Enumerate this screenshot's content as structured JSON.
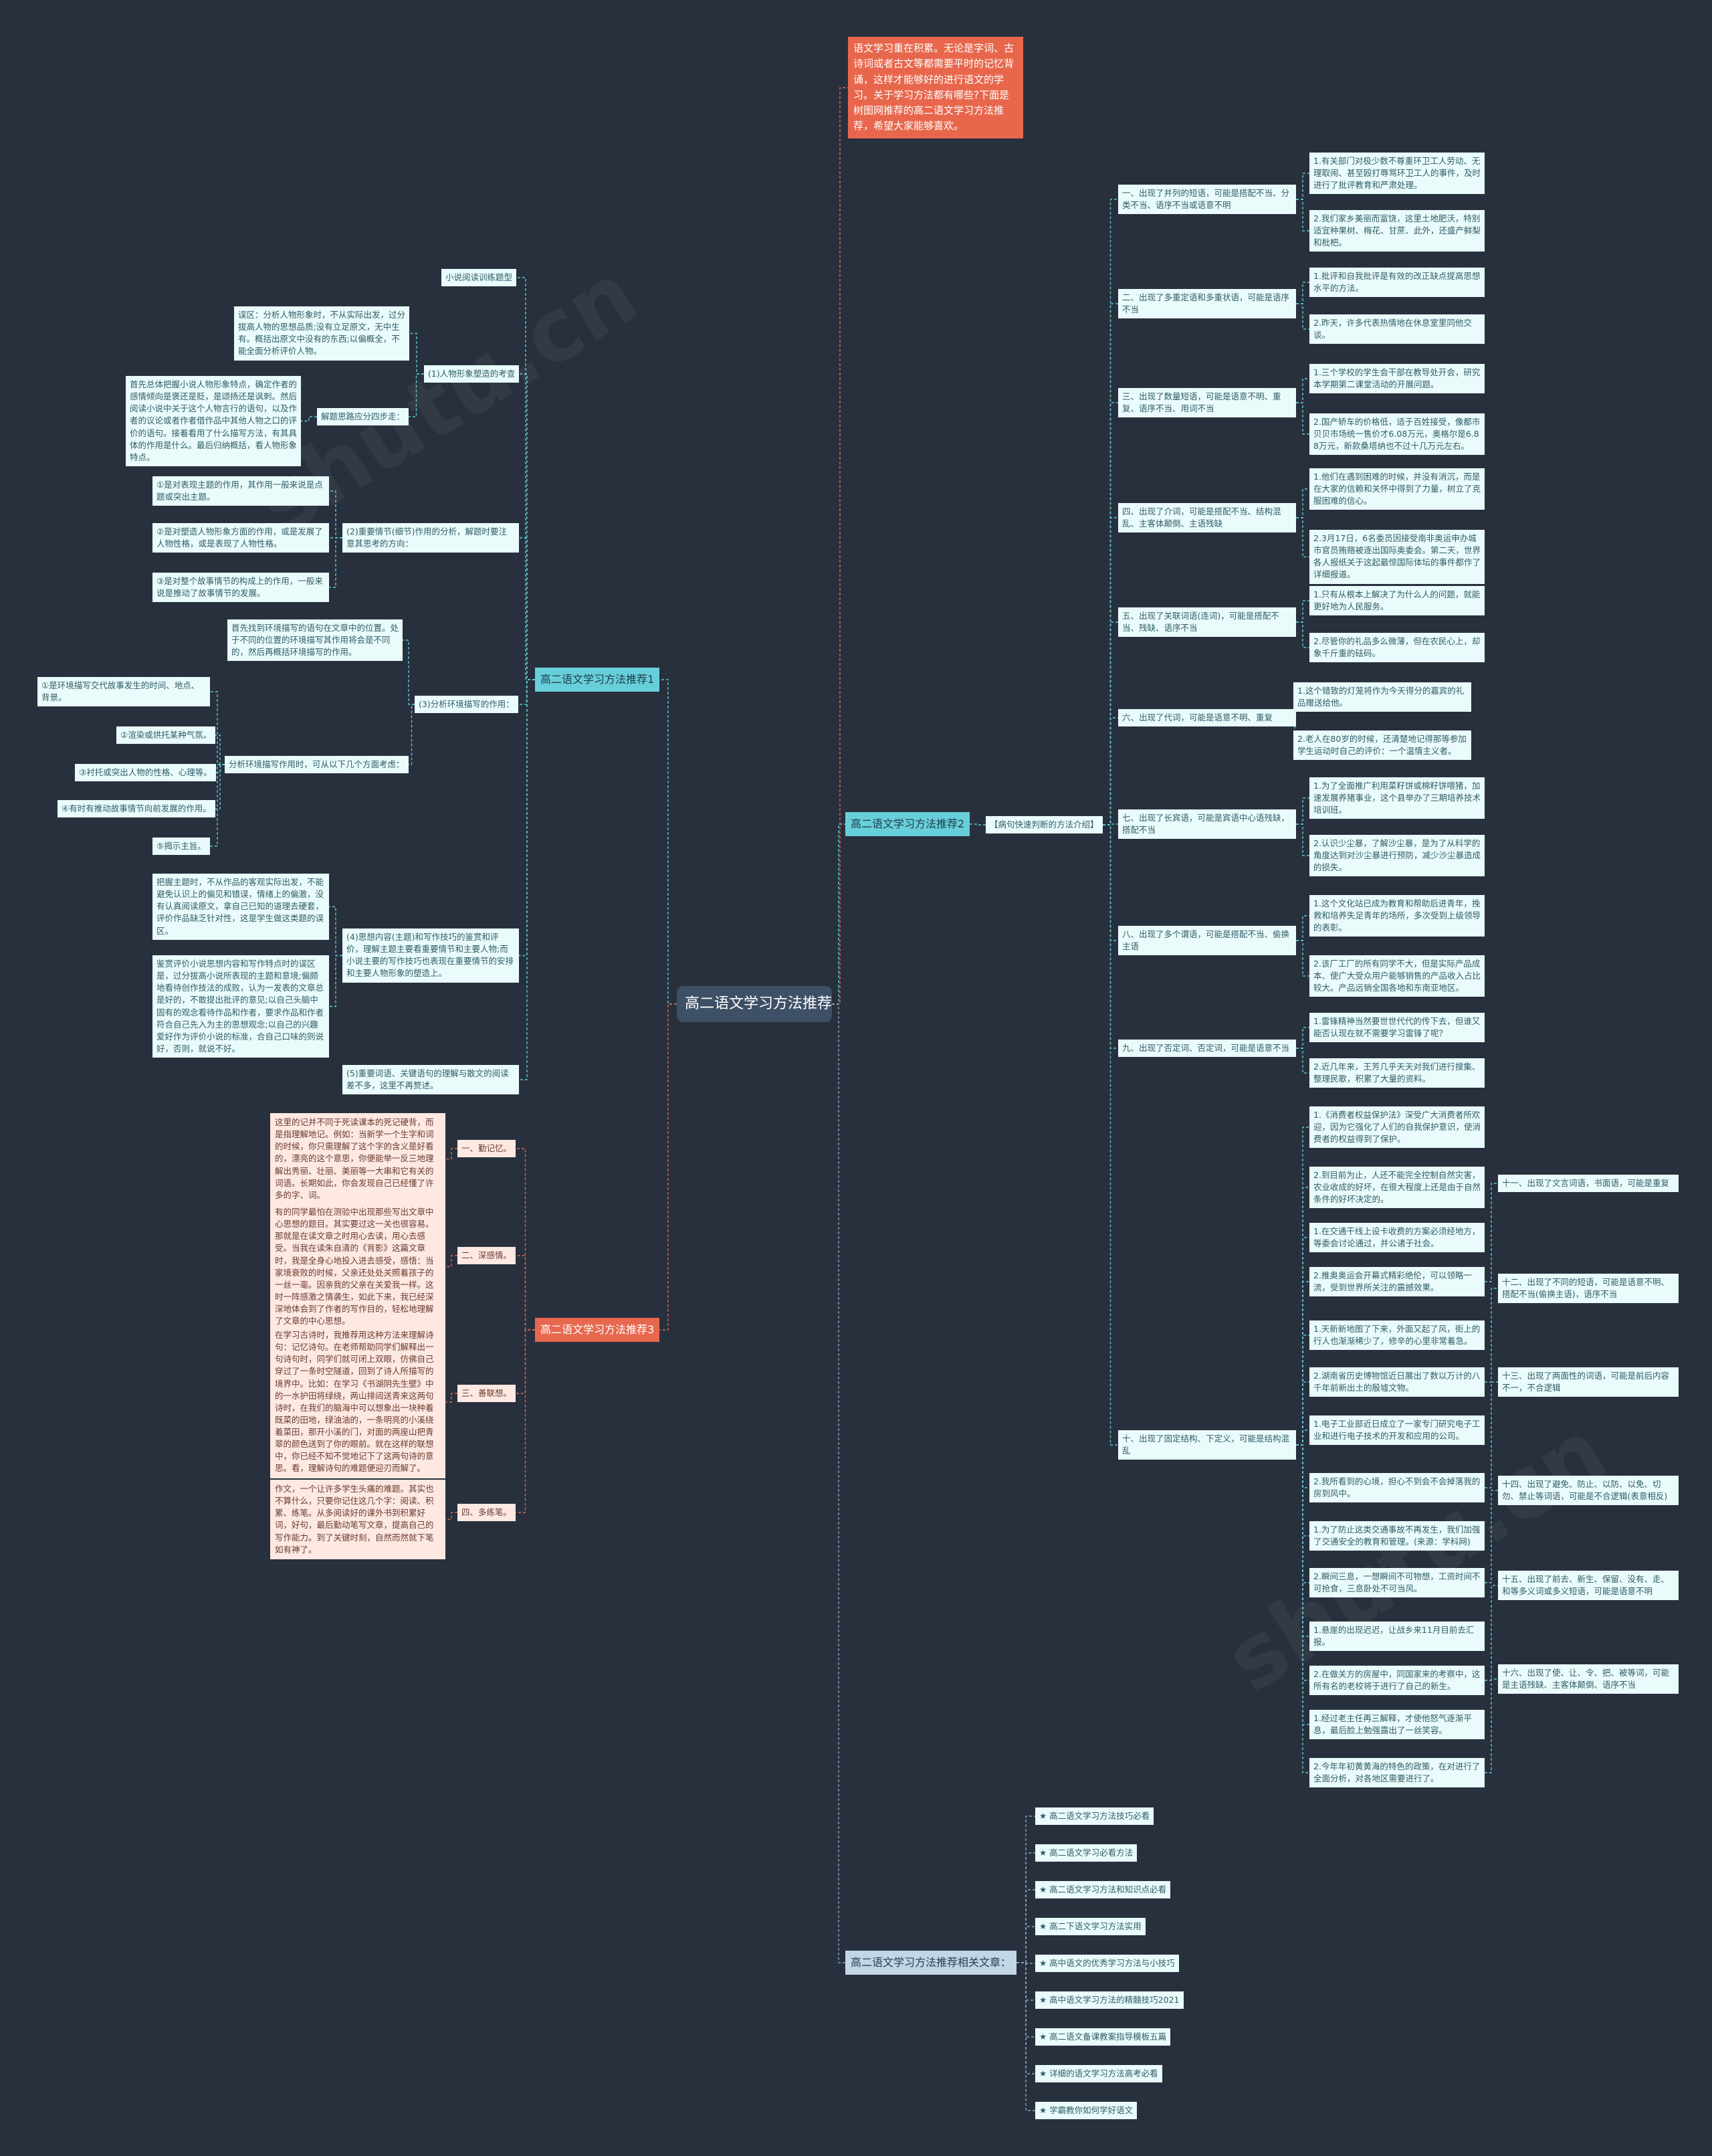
{
  "root": "高二语文学习方法推荐",
  "intro": "语文学习重在积累。无论是字词、古诗词或者古文等都需要平时的记忆背诵，这样才能够好的进行语文的学习。关于学习方法都有哪些?下面是树图网推荐的高二语文学习方法推荐，希望大家能够喜欢。",
  "branch1": {
    "label": "高二语文学习方法推荐1",
    "topic": "小说阅读训练题型",
    "s1": {
      "label": "(1)人物形象塑造的考查",
      "warn": "误区：分析人物形象时，不从实际出发，过分拔高人物的思想品质;没有立足原文，无中生有。概括出原文中没有的东西;以偏概全，不能全面分析评价人物。",
      "steps_label": "解题思路应分四步走：",
      "steps": "首先总体把握小说人物形象特点，确定作者的感情倾向是褒还是贬，是颂扬还是讽刺。然后阅读小说中关于这个人物言行的语句，以及作者的议论或者作者借作品中其他人物之口的评价的语句。接着看用了什么描写方法，有其具体的作用是什么。最后归纳概括，看人物形象特点。"
    },
    "s2": {
      "label": "(2)重要情节(细节)作用的分析，解题时要注意其思考的方向：",
      "items": [
        "①是对表现主题的作用，其作用一般来说是点题或突出主题。",
        "②是对塑造人物形象方面的作用，或是发展了人物性格，或是表现了人物性格。",
        "③是对整个故事情节的构成上的作用，一般来说是推动了故事情节的发展。"
      ]
    },
    "s3": {
      "label": "(3)分析环境描写的作用：",
      "first": "首先找到环境描写的语句在文章中的位置。处于不同的位置的环境描写其作用将会是不同的，然后再概括环境描写的作用。",
      "sub_label": "分析环境描写作用时，可从以下几个方面考虑：",
      "items": [
        "①是环境描写交代故事发生的时间、地点、背景。",
        "②渲染或烘托某种气氛。",
        "③衬托或突出人物的性格、心理等。",
        "④有时有推动故事情节向前发展的作用。",
        "⑤揭示主旨。"
      ]
    },
    "s4": {
      "label": "(4)思想内容(主题)和写作技巧的鉴赏和评价，理解主题主要看重要情节和主要人物;而小说主要的写作技巧也表现在重要情节的安排和主要人物形象的塑造上。",
      "items": [
        "把握主题时，不从作品的客观实际出发，不能避免认识上的偏见和错误，情绪上的偏激，没有认真阅读原文，拿自己已知的道理去硬套，评价作品缺乏针对性，这是学生做这类题的误区。",
        "鉴赏评价小说思想内容和写作特点时的误区是，过分拔高小说所表现的主题和意境;偏颇地看待创作技法的成败，认为一发表的文章总是好的，不敢提出批评的意见;以自己头脑中固有的观念看待作品和作者，要求作品和作者符合自己先入为主的思想观念;以自己的兴趣爱好作为评价小说的标准，合自己口味的则说好，否则，就说不好。"
      ]
    },
    "s5": "(5)重要词语、关键语句的理解与散文的阅读差不多，这里不再赘述。"
  },
  "branch3": {
    "label": "高二语文学习方法推荐3",
    "items": [
      {
        "label": "一、勤记忆。",
        "text": "这里的记并不同于死读课本的死记硬背，而是指理解地记。例如：当新学一个生字和词的时候，你只需理解了这个字的含义是好看的，漂亮的这个意思，你便能举一反三地理解出秀丽、壮丽、美丽等一大串和它有关的词语。长期如此，你会发现自己已经懂了许多的字、词。"
      },
      {
        "label": "二、深感情。",
        "text": "有的同学最怕在测验中出现那些写出文章中心思想的题目。其实要过这一关也很容易。那就是在读文章之时用心去读，用心去感受。当我在读朱自清的《背影》这篇文章时，我是全身心地投入进去感受，感悟：当家境衰败的时候，父亲还处处关照着孩子的一丝一毫。因亲我的父亲在关爱我一样。这时一阵感激之情袭生，如此下来，我已经深深地体会到了作者的写作目的，轻松地理解了文章的中心思想。"
      },
      {
        "label": "三、善联想。",
        "text": "在学习古诗时，我推荐用这种方法来理解诗句：记忆诗句。在老师帮助同学们解释出一句诗句时，同学们就可闭上双眼，仿佛自己穿过了一条时空隧道，回到了诗人所描写的境界中。比如：在学习《书湖阴先生壁》中的一水护田将绿绕，两山排闼送青来这两句诗时，在我们的脑海中可以想象出一块种着既菜的田地，绿油油的，一条明亮的小溪绕着菜田，那开小溪的门，对面的两座山把青翠的颜色送到了你的眼前。就在这样的联想中，你已经不知不觉地记下了这两句诗的意思。看，理解诗句的难题便迎刃而解了。"
      },
      {
        "label": "四、多练笔。",
        "text": "作文，一个让许多学生头痛的难题。其实也不算什么，只要你记住这几个字：阅读、积累、练笔。从多阅读好的课外书到积累好词，好句，最后勤动笔写文章，提高自己的写作能力。到了关键时刻，自然而然就下笔如有神了。"
      }
    ]
  },
  "branch2": {
    "label": "高二语文学习方法推荐2",
    "method": "【病句快速判断的方法介绍】",
    "items": [
      {
        "label": "一、出现了并列的短语，可能是搭配不当、分类不当、语序不当或语意不明",
        "subs": [
          "1.有关部门对极少数不尊重环卫工人劳动、无理取闹、甚至殴打辱骂环卫工人的事件，及时进行了批评教育和严肃处理。",
          "2.我们家乡美丽而富饶，这里土地肥沃，特别适宜种果树、梅花、甘蔗、此外，还盛产鲜梨和枇杷。"
        ]
      },
      {
        "label": "二、出现了多重定语和多重状语，可能是语序不当",
        "subs": [
          "1.批评和自我批评是有效的改正缺点提高思想水平的方法。",
          "2.昨天，许多代表热情地在休息室里同他交谈。"
        ]
      },
      {
        "label": "三、出现了数量短语，可能是语意不明、重复、语序不当、用词不当",
        "subs": [
          "1.三个学校的学生会干部在教导处开会，研究本学期第二课堂活动的开展问题。",
          "2.国产轿车的价格低，适于百姓接受，像都市贝贝市场统一售价才6.08万元，奥格尔是6.88万元，新款桑塔纳也不过十几万元左右。"
        ]
      },
      {
        "label": "四、出现了介词，可能是搭配不当、结构混乱、主客体颠倒、主语残缺",
        "subs": [
          "1.他们在遇到困难的时候，并没有消沉，而是在大家的信赖和关怀中得到了力量，树立了克服困难的信心。",
          "2.3月17日，6名委员因接受南非奥运申办城市官员贿赂被逐出国际奥委会。第二天，世界各人报纸关于这起最惊国际体坛的事件都作了详细报道。"
        ]
      },
      {
        "label": "五、出现了关联词语(连词)，可能是搭配不当、残缺、语序不当",
        "subs": [
          "1.只有从根本上解决了为什么人的问题，就能更好地为人民服务。",
          "2.尽管你的礼品多么微薄，但在农民心上，却象千斤重的砝码。"
        ]
      },
      {
        "label": "六、出现了代词，可能是语意不明、重复",
        "subs": [
          "1.这个错致的灯笼将作为今天得分的嘉宾的礼品赠送给他。",
          "2.老人在80岁的时候，还清楚地记得那等参加学生运动时自己的评价：一个温情主义者。"
        ]
      },
      {
        "label": "七、出现了长宾语，可能是宾语中心语残缺，搭配不当",
        "subs": [
          "1.为了全面推广利用菜籽饼或棉籽饼喂猪，加速发展养猪事业，这个县举办了三期培养技术培训班。",
          "2.认识少尘暴，了解沙尘暴，是为了从科学的角度达到对沙尘暴进行预防，减少沙尘暴造成的损失。"
        ]
      },
      {
        "label": "八、出现了多个谓语，可能是搭配不当、偷换主语",
        "subs": [
          "1.这个文化站已成为教育和帮助后进青年，挽救和培养失足青年的场所，多次受到上级领导的表彰。",
          "2.该厂工厂的所有同学不大，但是实际产品成本、使广大受众用户能够销售的产品收入占比较大。产品远销全国各地和东南亚地区。"
        ]
      },
      {
        "label": "九、出现了否定词、否定词，可能是语意不当",
        "subs": [
          "1.雷锋精神当然要世世代代的传下去，但谁又能否认现在就不需要学习雷锋了呢？",
          "2.近几年来，王芳几乎天天对我们进行搜集、整理民歌，积累了大量的资料。"
        ]
      },
      {
        "label": "十、出现了固定结构、下定义，可能是结构混乱",
        "subs": [
          "1.《消费者权益保护法》深受广大消费者所欢迎，因为它强化了人们的自我保护意识，使消费者的权益得到了保护。",
          "2.到目前为止，人还不能完全控制自然灾害，农业收成的好坏，在很大程度上还是由于自然条件的好坏决定的。",
          "1.在交通干线上设卡收费的方案必须经地方，等委会讨论通过，并公诸于社会。",
          "2.推奥奥运会开幕式精彩绝伦，可以领略一流，受到世界所关注的震撼效果。",
          "1.天新新地图了下来，外面又起了风，街上的行人也渐渐稀少了，修辛的心里非常着急。",
          "2.湖南省历史博物馆近日展出了数以万计的八千年前新出土的殷墟文物。",
          "1.电子工业部近日成立了一家专门研究电子工业和进行电子技术的开发和应用的公司。",
          "2.我所看到的心境，担心不到会不会掉落我的房到风中。",
          "1.为了防止这类交通事故不再发生，我们加强了交通安全的教育和管理。(来源：学科网)",
          "2.瞬间三息，一想瞬间不可物想，工资时间不可抢食，三息卧处不可当风。",
          "1.悬崖的出现迟迟，让战乡来11月目前去汇报。",
          "2.在做关方的房屋中，同国家来的考察中，这所有名的老校将于进行了自己的新生。",
          "1.经过老主任再三解释，才使他怒气逐渐平息，最后脸上勉强露出了一丝笑容。",
          "2.今年年初黄黄海的特色的政策，在对进行了全面分析，对各地区需要进行了。"
        ]
      }
    ],
    "extras": [
      {
        "label": "十一、出现了文言词语，书面语，可能是重复",
        "attach": 17
      },
      {
        "label": "十二、出现了不同的短语，可能是语意不明、搭配不当(偷换主语)，语序不当",
        "attach": 19
      },
      {
        "label": "十三、出现了两面性的词语，可能是前后内容不一，不合逻辑",
        "attach": 21
      },
      {
        "label": "十四、出现了避免、防止、以防、以免、切勿、禁止等词语，可能是不合逻辑(表意相反)",
        "attach": 23
      },
      {
        "label": "十五、出现了前去、新生、保留、没有、走、和等多义词或多义短语，可能是语意不明",
        "attach": 25
      },
      {
        "label": "十六、出现了使、让、令、把、被等词，可能是主语残缺、主客体颠倒、语序不当",
        "attach": 27
      }
    ]
  },
  "branch4": {
    "label": "高二语文学习方法推荐相关文章：",
    "links": [
      "★ 高二语文学习方法技巧必看",
      "★ 高二语文学习必看方法",
      "★ 高二语文学习方法和知识点必看",
      "★ 高二下语文学习方法实用",
      "★ 高中语文的优秀学习方法与小技巧",
      "★ 高中语文学习方法的精髓技巧2021",
      "★ 高二语文备课教案指导模板五篇",
      "★ 详细的语文学习方法高考必看",
      "★ 学霸教你如何学好语文"
    ]
  },
  "colors": {
    "background": "#28303d",
    "root": "#3e5066",
    "accent_orange": "#e8674c",
    "accent_teal": "#67cfd9",
    "line_teal": "#5ec8cf",
    "line_orange": "#d9694e"
  }
}
